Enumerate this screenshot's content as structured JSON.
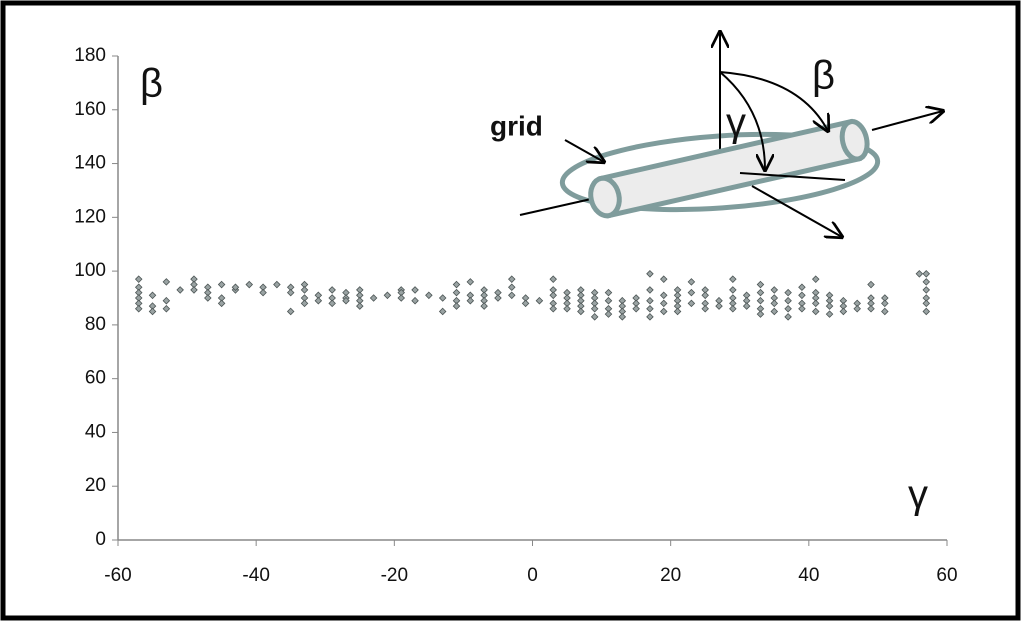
{
  "chart_data": {
    "type": "scatter",
    "annotations": [
      "β",
      "γ",
      "grid",
      "β",
      "γ"
    ],
    "x": [
      -57,
      -57,
      -57,
      -57,
      -57,
      -57,
      -55,
      -55,
      -55,
      -53,
      -53,
      -53,
      -51,
      -49,
      -49,
      -49,
      -47,
      -47,
      -47,
      -45,
      -45,
      -45,
      -43,
      -43,
      -41,
      -39,
      -39,
      -37,
      -35,
      -35,
      -35,
      -33,
      -33,
      -33,
      -33,
      -31,
      -31,
      -29,
      -29,
      -29,
      -27,
      -27,
      -27,
      -25,
      -25,
      -25,
      -25,
      -23,
      -21,
      -19,
      -19,
      -19,
      -17,
      -17,
      -15,
      -13,
      -13,
      -11,
      -11,
      -11,
      -11,
      -9,
      -9,
      -9,
      -7,
      -7,
      -7,
      -7,
      -5,
      -5,
      -3,
      -3,
      -3,
      -1,
      -1,
      1,
      3,
      3,
      3,
      3,
      3,
      5,
      5,
      5,
      5,
      7,
      7,
      7,
      7,
      7,
      9,
      9,
      9,
      9,
      9,
      11,
      11,
      11,
      11,
      13,
      13,
      13,
      13,
      15,
      15,
      15,
      17,
      17,
      17,
      17,
      17,
      19,
      19,
      19,
      19,
      21,
      21,
      21,
      21,
      21,
      23,
      23,
      23,
      25,
      25,
      25,
      25,
      27,
      27,
      29,
      29,
      29,
      29,
      29,
      31,
      31,
      31,
      33,
      33,
      33,
      33,
      33,
      35,
      35,
      35,
      35,
      37,
      37,
      37,
      37,
      39,
      39,
      39,
      39,
      41,
      41,
      41,
      41,
      41,
      43,
      43,
      43,
      43,
      45,
      45,
      45,
      47,
      47,
      49,
      49,
      49,
      49,
      51,
      51,
      51,
      56,
      57,
      57,
      57,
      57,
      57,
      57
    ],
    "values": [
      97,
      94,
      92,
      90,
      88,
      86,
      91,
      87,
      85,
      96,
      89,
      86,
      93,
      97,
      95,
      93,
      94,
      92,
      90,
      95,
      90,
      88,
      93,
      94,
      95,
      94,
      92,
      95,
      94,
      92,
      85,
      95,
      93,
      90,
      88,
      91,
      89,
      93,
      90,
      88,
      92,
      90,
      89,
      93,
      91,
      89,
      87,
      90,
      91,
      93,
      92,
      90,
      93,
      89,
      91,
      90,
      85,
      95,
      92,
      89,
      87,
      96,
      91,
      89,
      93,
      91,
      89,
      87,
      92,
      90,
      97,
      94,
      91,
      90,
      88,
      89,
      97,
      93,
      91,
      88,
      86,
      92,
      90,
      88,
      86,
      93,
      91,
      89,
      87,
      85,
      92,
      90,
      88,
      86,
      83,
      92,
      89,
      86,
      84,
      89,
      87,
      85,
      83,
      90,
      88,
      86,
      99,
      93,
      89,
      86,
      83,
      97,
      91,
      88,
      85,
      93,
      91,
      89,
      87,
      85,
      96,
      92,
      88,
      93,
      91,
      88,
      86,
      89,
      87,
      97,
      93,
      90,
      88,
      86,
      91,
      89,
      87,
      95,
      92,
      89,
      86,
      84,
      93,
      90,
      88,
      85,
      92,
      89,
      86,
      83,
      94,
      91,
      88,
      86,
      97,
      92,
      90,
      88,
      85,
      91,
      89,
      87,
      84,
      89,
      87,
      85,
      88,
      86,
      95,
      90,
      88,
      86,
      90,
      88,
      85,
      99,
      99,
      96,
      93,
      90,
      88,
      85
    ],
    "color": "#9aa3a3",
    "xlim": [
      -60,
      60
    ],
    "xticks": [
      -60,
      -40,
      -20,
      0,
      20,
      40,
      60
    ],
    "ylim": [
      0,
      180
    ],
    "yticks": [
      0,
      20,
      40,
      60,
      80,
      100,
      120,
      140,
      160,
      180
    ],
    "grid": false
  }
}
